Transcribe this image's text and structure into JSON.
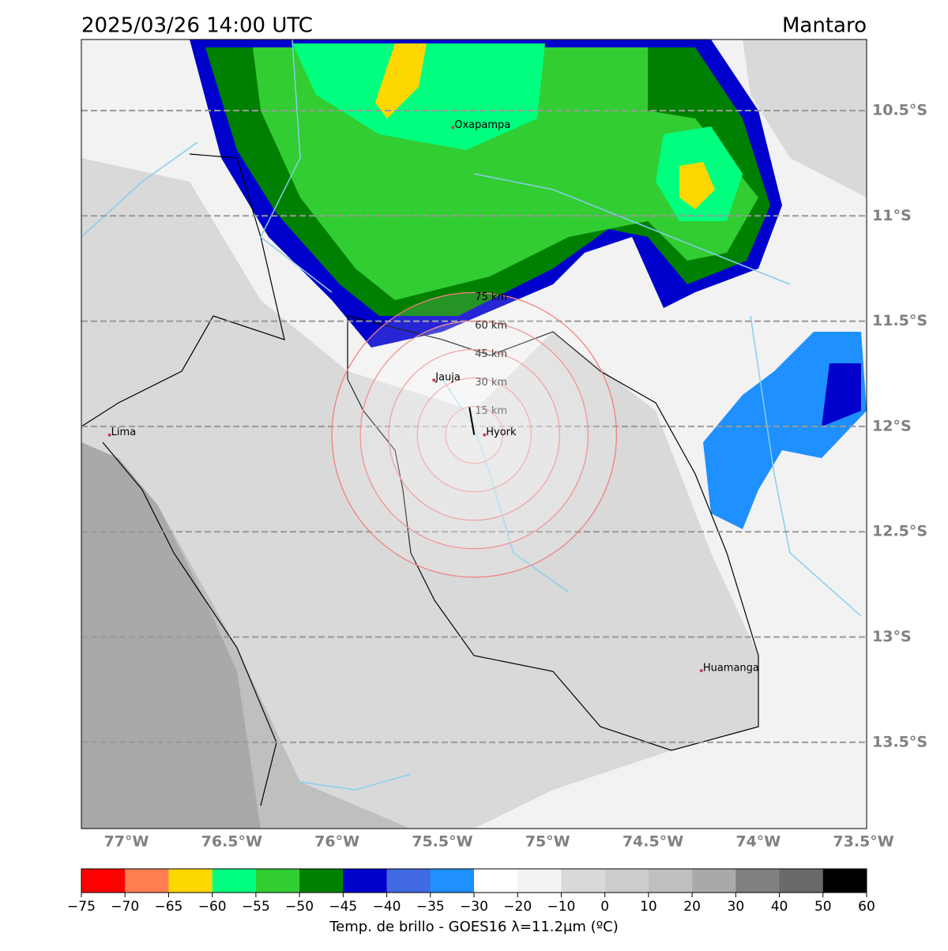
{
  "map": {
    "title": "2025/03/26 14:00 UTC",
    "region": "Mantaro",
    "lon_ticks": [
      {
        "value": -77,
        "label": "77°W"
      },
      {
        "value": -76.5,
        "label": "76.5°W"
      },
      {
        "value": -76,
        "label": "76°W"
      },
      {
        "value": -75.5,
        "label": "75.5°W"
      },
      {
        "value": -75,
        "label": "75°W"
      },
      {
        "value": -74.5,
        "label": "74.5°W"
      },
      {
        "value": -74,
        "label": "74°W"
      },
      {
        "value": -73.5,
        "label": "73.5°W"
      }
    ],
    "lat_ticks": [
      {
        "value": -10.5,
        "label": "10.5°S"
      },
      {
        "value": -11,
        "label": "11°S"
      },
      {
        "value": -11.5,
        "label": "11.5°S"
      },
      {
        "value": -12,
        "label": "12°S"
      },
      {
        "value": -12.5,
        "label": "12.5°S"
      },
      {
        "value": -13,
        "label": "13°S"
      },
      {
        "value": -13.5,
        "label": "13.5°S"
      }
    ],
    "places": [
      {
        "name": "Oxapampa",
        "lon": -75.45,
        "lat": -10.58
      },
      {
        "name": "Jauja",
        "lon": -75.54,
        "lat": -11.78
      },
      {
        "name": "Hyork",
        "lon": -75.3,
        "lat": -12.04
      },
      {
        "name": "Lima",
        "lon": -77.08,
        "lat": -12.04
      },
      {
        "name": "Huamanga",
        "lon": -74.27,
        "lat": -13.16
      }
    ],
    "rings": [
      {
        "km": 15,
        "label": "15 km"
      },
      {
        "km": 30,
        "label": "30 km"
      },
      {
        "km": 45,
        "label": "45 km"
      },
      {
        "km": 60,
        "label": "60 km"
      },
      {
        "km": 75,
        "label": "75 km"
      }
    ]
  },
  "colorbar": {
    "label": "Temp. de brillo - GOES16 λ=11.2μm (ºC)",
    "ticks": [
      {
        "value": -75,
        "label": "−75"
      },
      {
        "value": -70,
        "label": "−70"
      },
      {
        "value": -65,
        "label": "−65"
      },
      {
        "value": -60,
        "label": "−60"
      },
      {
        "value": -55,
        "label": "−55"
      },
      {
        "value": -50,
        "label": "−50"
      },
      {
        "value": -45,
        "label": "−45"
      },
      {
        "value": -40,
        "label": "−40"
      },
      {
        "value": -35,
        "label": "−35"
      },
      {
        "value": -30,
        "label": "−30"
      },
      {
        "value": -20,
        "label": "−20"
      },
      {
        "value": -10,
        "label": "−10"
      },
      0,
      10,
      20,
      30,
      40,
      50,
      60
    ],
    "colors": [
      "#ff0000",
      "#ff7f50",
      "#ffd700",
      "#00ff7f",
      "#32cd32",
      "#008000",
      "#0000cd",
      "#4169e1",
      "#1e90ff",
      "#ffffff",
      "#f2f2f2",
      "#d9d9d9",
      "#cccccc",
      "#bfbfbf",
      "#a9a9a9",
      "#808080",
      "#696969",
      "#000000"
    ]
  }
}
